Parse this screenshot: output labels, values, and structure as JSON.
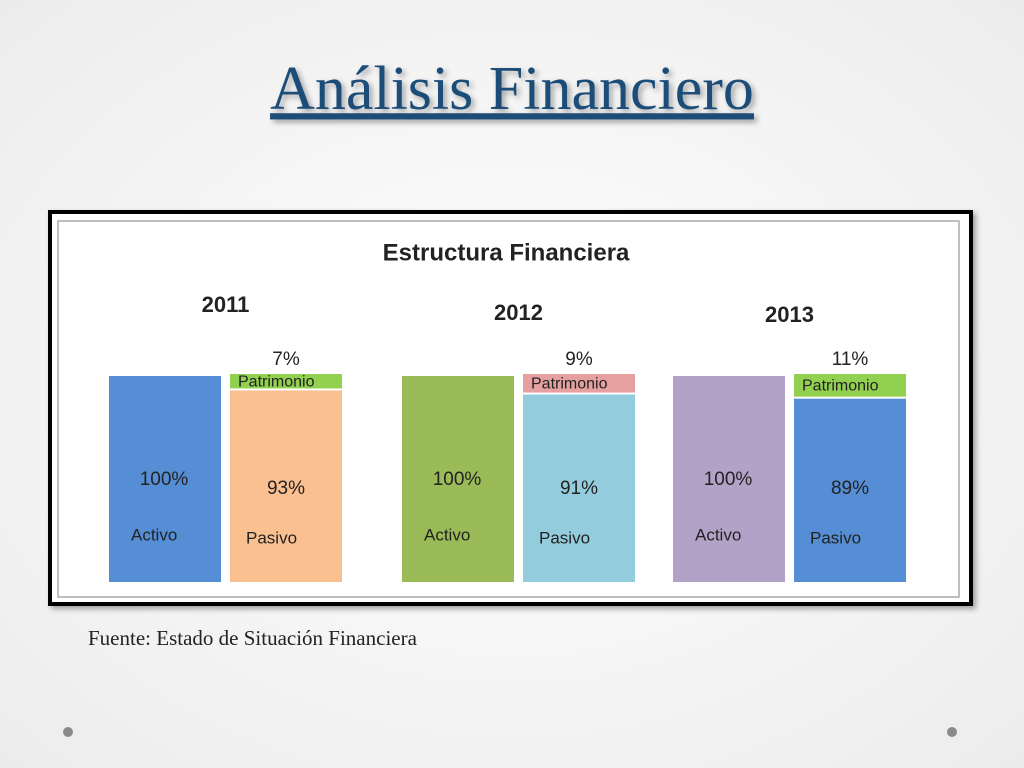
{
  "slide": {
    "title": "Análisis Financiero",
    "source": "Fuente: Estado de Situación Financiera"
  },
  "chart_data": {
    "type": "stacked-bar",
    "title": "Estructura Financiera",
    "categories": [
      "2011",
      "2012",
      "2013"
    ],
    "series": [
      {
        "name": "Activo",
        "values": [
          100,
          100,
          100
        ],
        "value_labels": [
          "100%",
          "100%",
          "100%"
        ],
        "colors": [
          "#558ed5",
          "#9bbb59",
          "#b3a2c7"
        ]
      },
      {
        "name": "Pasivo",
        "values": [
          93,
          91,
          89
        ],
        "value_labels": [
          "93%",
          "91%",
          "89%"
        ],
        "colors": [
          "#fac090",
          "#93cddd",
          "#558ed5"
        ]
      },
      {
        "name": "Patrimonio",
        "values": [
          7,
          9,
          11
        ],
        "value_labels": [
          "7%",
          "9%",
          "11%"
        ],
        "colors": [
          "#92d050",
          "#e6a0a0",
          "#92d050"
        ]
      }
    ]
  }
}
